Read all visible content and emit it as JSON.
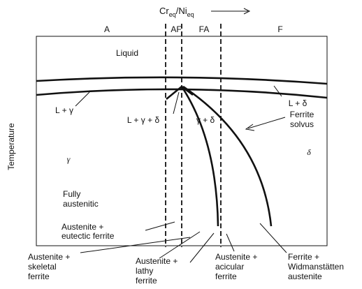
{
  "axis": {
    "cr": "Cr",
    "cr_sub": "eq",
    "ni": "/Ni",
    "ni_sub": "eq",
    "y_label": "Temperature"
  },
  "regions": [
    "A",
    "AF",
    "FA",
    "F"
  ],
  "labels": {
    "liquid": "Liquid",
    "l_gamma": "L + γ",
    "l_gamma_delta": "L + γ + δ",
    "gamma_delta": "γ + δ",
    "l_delta": "L + δ",
    "ferrite_solvus": [
      "Ferrite",
      "solvus"
    ],
    "gamma": "γ",
    "delta": "δ",
    "fully_austenitic": [
      "Fully",
      "austenitic"
    ],
    "eutectic": [
      "Austenite +",
      "eutectic ferrite"
    ],
    "skeletal": [
      "Austenite +",
      "skeletal",
      "ferrite"
    ],
    "lathy": [
      "Austenite +",
      "lathy",
      "ferrite"
    ],
    "acicular": [
      "Austenite +",
      "acicular",
      "ferrite"
    ],
    "widmanstatten": [
      "Ferrite +",
      "Widmanstätten",
      "austenite"
    ]
  }
}
